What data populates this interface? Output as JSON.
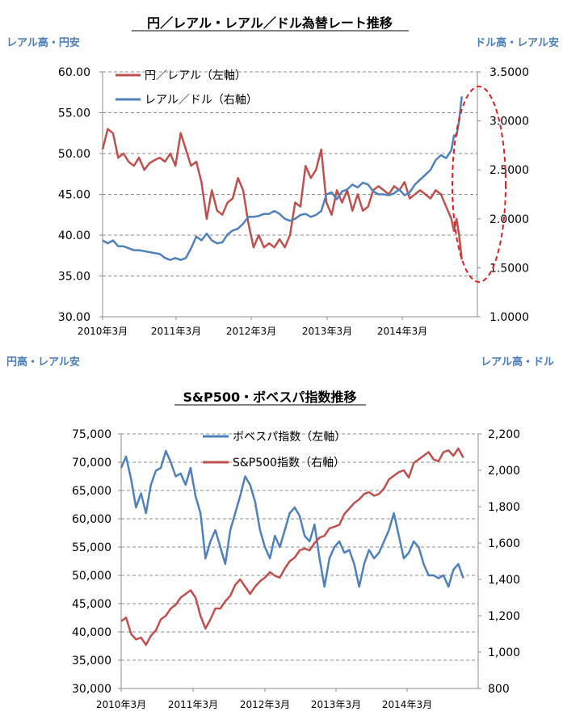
{
  "chart_data": [
    {
      "type": "line",
      "title": "円／レアル・レアル／ドル為替レート推移",
      "corner_labels": {
        "top_left": "レアル高・円安",
        "top_right": "ドル高・レアル安",
        "bottom_left": "円高・レアル安",
        "bottom_right": "レアル高・ドル"
      },
      "x_ticks": [
        "2010年3月",
        "2011年3月",
        "2012年3月",
        "2013年3月",
        "2014年3月"
      ],
      "x_range": [
        0,
        72
      ],
      "y_left": {
        "ticks": [
          "30.00",
          "35.00",
          "40.00",
          "45.00",
          "50.00",
          "55.00",
          "60.00"
        ],
        "range": [
          30,
          60
        ]
      },
      "y_right": {
        "ticks": [
          "1.0000",
          "1.5000",
          "2.0000",
          "2.5000",
          "3.0000",
          "3.5000"
        ],
        "range": [
          1.0,
          3.5
        ]
      },
      "series": [
        {
          "name": "円／レアル（左軸）",
          "axis": "left",
          "color": "#c0504d",
          "x": [
            0,
            1,
            2,
            3,
            4,
            5,
            6,
            7,
            8,
            9,
            10,
            11,
            12,
            13,
            14,
            15,
            16,
            17,
            18,
            19,
            20,
            21,
            22,
            23,
            24,
            25,
            26,
            27,
            28,
            29,
            30,
            31,
            32,
            33,
            34,
            35,
            36,
            37,
            38,
            39,
            40,
            41,
            42,
            43,
            44,
            45,
            46,
            47,
            48,
            49,
            50,
            51,
            52,
            53,
            54,
            55,
            56,
            57,
            58,
            59,
            60,
            61,
            62,
            63,
            64,
            65,
            66,
            67,
            67.5,
            68,
            68.5,
            69
          ],
          "values": [
            50.5,
            53.0,
            52.5,
            49.5,
            50.0,
            49.0,
            48.5,
            49.5,
            48.0,
            48.8,
            49.2,
            49.5,
            49.0,
            50.0,
            48.5,
            52.5,
            50.5,
            48.5,
            49.0,
            46.5,
            42.0,
            45.5,
            43.0,
            42.5,
            44.0,
            44.5,
            47.0,
            45.5,
            41.5,
            38.5,
            40.0,
            38.5,
            39.0,
            38.5,
            39.5,
            38.5,
            40.0,
            44.0,
            43.5,
            48.5,
            47.0,
            48.0,
            50.5,
            44.0,
            42.5,
            45.5,
            44.0,
            45.5,
            43.0,
            45.0,
            43.0,
            43.5,
            45.5,
            46.0,
            45.5,
            45.0,
            46.0,
            45.5,
            46.5,
            44.5,
            45.0,
            45.5,
            45.0,
            44.5,
            45.5,
            45.0,
            43.5,
            42.0,
            40.5,
            42.0,
            40.0,
            37.0
          ]
        },
        {
          "name": "レアル／ドル（右軸）",
          "axis": "right",
          "color": "#4f81bd",
          "x": [
            0,
            1,
            2,
            3,
            4,
            5,
            6,
            7,
            8,
            9,
            10,
            11,
            12,
            13,
            14,
            15,
            16,
            17,
            18,
            19,
            20,
            21,
            22,
            23,
            24,
            25,
            26,
            27,
            28,
            29,
            30,
            31,
            32,
            33,
            34,
            35,
            36,
            37,
            38,
            39,
            40,
            41,
            42,
            43,
            44,
            45,
            46,
            47,
            48,
            49,
            50,
            51,
            52,
            53,
            54,
            55,
            56,
            57,
            58,
            59,
            60,
            61,
            62,
            63,
            64,
            65,
            66,
            67,
            67.5,
            68,
            68.5,
            69
          ],
          "values": [
            1.78,
            1.75,
            1.78,
            1.72,
            1.72,
            1.7,
            1.68,
            1.68,
            1.67,
            1.66,
            1.65,
            1.64,
            1.6,
            1.58,
            1.6,
            1.58,
            1.6,
            1.7,
            1.82,
            1.78,
            1.85,
            1.78,
            1.75,
            1.76,
            1.84,
            1.88,
            1.9,
            1.95,
            2.02,
            2.02,
            2.03,
            2.05,
            2.05,
            2.08,
            2.05,
            2.0,
            1.98,
            2.0,
            2.04,
            2.05,
            2.02,
            2.04,
            2.08,
            2.25,
            2.27,
            2.2,
            2.28,
            2.3,
            2.35,
            2.32,
            2.37,
            2.35,
            2.28,
            2.25,
            2.25,
            2.24,
            2.26,
            2.3,
            2.24,
            2.27,
            2.35,
            2.4,
            2.45,
            2.5,
            2.6,
            2.65,
            2.62,
            2.7,
            2.85,
            2.85,
            3.0,
            3.25
          ]
        }
      ]
    },
    {
      "type": "line",
      "title": "S&P500・ボベスパ指数推移",
      "x_ticks": [
        "2010年3月",
        "2011年3月",
        "2012年3月",
        "2013年3月",
        "2014年3月"
      ],
      "x_range": [
        0,
        72
      ],
      "y_left": {
        "ticks": [
          "30,000",
          "35,000",
          "40,000",
          "45,000",
          "50,000",
          "55,000",
          "60,000",
          "65,000",
          "70,000",
          "75,000"
        ],
        "range": [
          30000,
          75000
        ]
      },
      "y_right": {
        "ticks": [
          "800",
          "1,000",
          "1,200",
          "1,400",
          "1,600",
          "1,800",
          "2,000",
          "2,200"
        ],
        "range": [
          800,
          2200
        ]
      },
      "series": [
        {
          "name": "ボベスパ指数（左軸）",
          "axis": "left",
          "color": "#4f81bd",
          "x": [
            0,
            1,
            2,
            3,
            4,
            5,
            6,
            7,
            8,
            9,
            10,
            11,
            12,
            13,
            14,
            15,
            16,
            17,
            18,
            19,
            20,
            21,
            22,
            23,
            24,
            25,
            26,
            27,
            28,
            29,
            30,
            31,
            32,
            33,
            34,
            35,
            36,
            37,
            38,
            39,
            40,
            41,
            42,
            43,
            44,
            45,
            46,
            47,
            48,
            49,
            50,
            51,
            52,
            53,
            54,
            55,
            56,
            57,
            58,
            59,
            60,
            61,
            62,
            63,
            64,
            65,
            66,
            67,
            68,
            69
          ],
          "values": [
            69000,
            71000,
            67000,
            62000,
            64500,
            61000,
            66000,
            68500,
            69000,
            72000,
            70000,
            67500,
            68000,
            66000,
            69000,
            64000,
            61000,
            53000,
            56000,
            58000,
            55000,
            52000,
            58000,
            61000,
            64000,
            67500,
            66000,
            63000,
            58000,
            55000,
            53000,
            57000,
            55000,
            58000,
            61000,
            62000,
            60500,
            57000,
            56000,
            59000,
            53000,
            48000,
            53000,
            55000,
            56000,
            54000,
            54500,
            52000,
            48000,
            52000,
            54500,
            53000,
            54000,
            56000,
            58000,
            61000,
            57000,
            53000,
            54000,
            56000,
            55000,
            52000,
            50000,
            50000,
            49500,
            50000,
            48000,
            51000,
            52000,
            49500
          ]
        },
        {
          "name": "S&P500指数（右軸）",
          "axis": "right",
          "color": "#c0504d",
          "x": [
            0,
            1,
            2,
            3,
            4,
            5,
            6,
            7,
            8,
            9,
            10,
            11,
            12,
            13,
            14,
            15,
            16,
            17,
            18,
            19,
            20,
            21,
            22,
            23,
            24,
            25,
            26,
            27,
            28,
            29,
            30,
            31,
            32,
            33,
            34,
            35,
            36,
            37,
            38,
            39,
            40,
            41,
            42,
            43,
            44,
            45,
            46,
            47,
            48,
            49,
            50,
            51,
            52,
            53,
            54,
            55,
            56,
            57,
            58,
            59,
            60,
            61,
            62,
            63,
            64,
            65,
            66,
            67,
            68,
            69
          ],
          "values": [
            1170,
            1190,
            1100,
            1070,
            1080,
            1040,
            1090,
            1120,
            1180,
            1200,
            1240,
            1260,
            1300,
            1320,
            1340,
            1300,
            1200,
            1130,
            1180,
            1240,
            1240,
            1280,
            1310,
            1370,
            1400,
            1360,
            1320,
            1360,
            1390,
            1410,
            1440,
            1420,
            1410,
            1460,
            1500,
            1520,
            1560,
            1570,
            1560,
            1600,
            1630,
            1640,
            1680,
            1690,
            1700,
            1760,
            1790,
            1820,
            1840,
            1870,
            1880,
            1860,
            1870,
            1900,
            1950,
            1970,
            1990,
            2000,
            1960,
            2040,
            2060,
            2080,
            2100,
            2060,
            2050,
            2100,
            2110,
            2080,
            2120,
            2070
          ]
        }
      ]
    }
  ]
}
